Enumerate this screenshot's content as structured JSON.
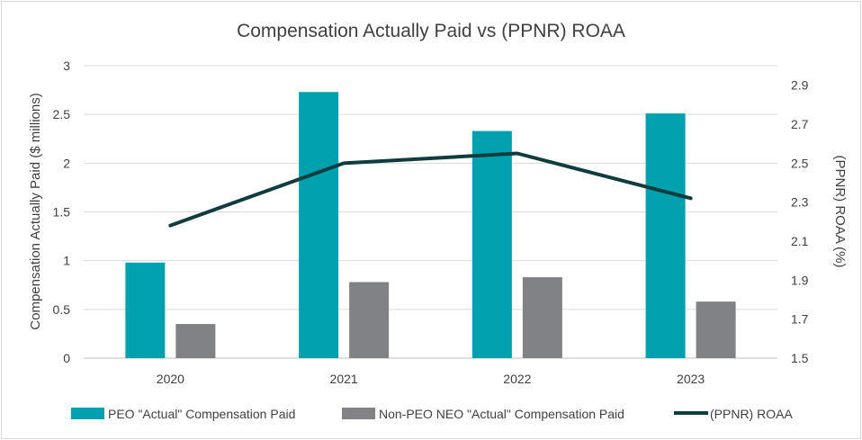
{
  "chart_data": {
    "type": "bar",
    "title": "Compensation Actually Paid vs (PPNR) ROAA",
    "categories": [
      "2020",
      "2021",
      "2022",
      "2023"
    ],
    "series": [
      {
        "name": "PEO \"Actual\" Compensation Paid",
        "kind": "bar",
        "axis": "left",
        "color": "#00a0ae",
        "values": [
          0.98,
          2.73,
          2.33,
          2.51
        ]
      },
      {
        "name": "Non-PEO NEO \"Actual\" Compensation Paid",
        "kind": "bar",
        "axis": "left",
        "color": "#808285",
        "values": [
          0.35,
          0.78,
          0.83,
          0.58
        ]
      },
      {
        "name": "(PPNR) ROAA",
        "kind": "line",
        "axis": "right",
        "color": "#0f3d3e",
        "values": [
          2.18,
          2.5,
          2.55,
          2.32
        ]
      }
    ],
    "ylabel": "Compensation Actually Paid ($ millions)",
    "y2label": "(PPNR) ROAA (%)",
    "ylim": [
      0,
      3
    ],
    "y2lim": [
      1.5,
      3.0
    ],
    "yticks": [
      "0",
      "0.5",
      "1",
      "1.5",
      "2",
      "2.5",
      "3"
    ],
    "y2ticks": [
      "1.5",
      "1.7",
      "1.9",
      "2.1",
      "2.3",
      "2.5",
      "2.7",
      "2.9"
    ],
    "grid": true,
    "legend": "bottom"
  }
}
